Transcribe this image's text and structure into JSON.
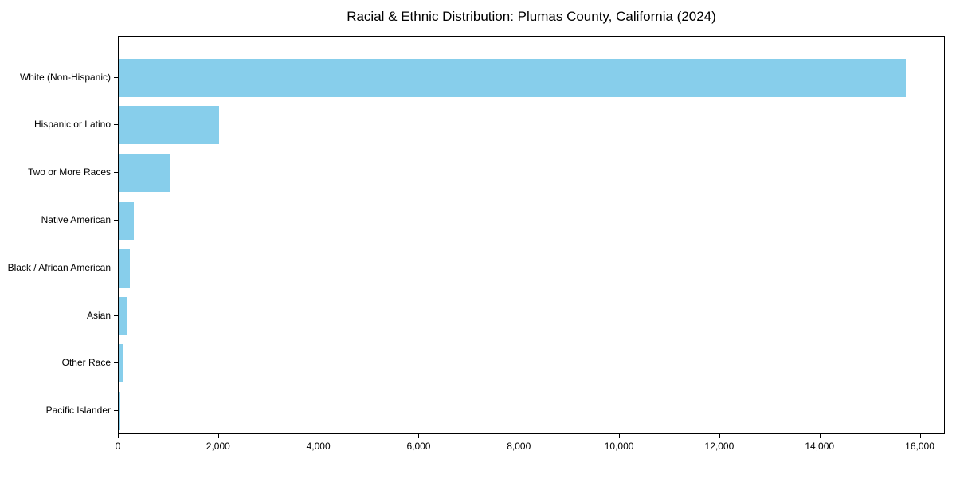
{
  "chart_data": {
    "type": "bar",
    "orientation": "horizontal",
    "title": "Racial & Ethnic Distribution: Plumas County, California (2024)",
    "categories": [
      "White (Non-Hispanic)",
      "Hispanic or Latino",
      "Two or More Races",
      "Native American",
      "Black / African American",
      "Asian",
      "Other Race",
      "Pacific Islander"
    ],
    "values": [
      15700,
      2000,
      1040,
      300,
      220,
      180,
      80,
      20
    ],
    "xlabel": "",
    "ylabel": "",
    "xlim": [
      0,
      16500
    ],
    "x_ticks": [
      0,
      2000,
      4000,
      6000,
      8000,
      10000,
      12000,
      14000,
      16000
    ],
    "x_tick_labels": [
      "0",
      "2,000",
      "4,000",
      "6,000",
      "8,000",
      "10,000",
      "12,000",
      "14,000",
      "16,000"
    ],
    "bar_color": "#87CEEB",
    "axis_color": "#000000",
    "text_color": "#000000",
    "background_color": "#ffffff",
    "grid": false,
    "legend": "none"
  }
}
